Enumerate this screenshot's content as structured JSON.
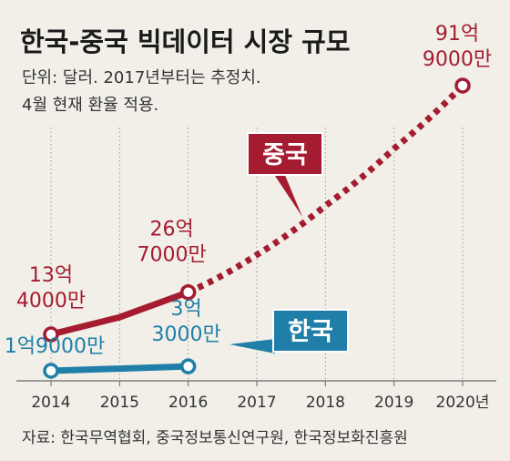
{
  "chart_data": {
    "type": "line",
    "title": "한국-중국 빅데이터 시장 규모",
    "subtitle": [
      "단위: 달러. 2017년부터는 추정치.",
      "4월 현재 환율 적용."
    ],
    "x": [
      "2014",
      "2015",
      "2016",
      "2017",
      "2018",
      "2019",
      "2020년"
    ],
    "series": [
      {
        "name": "중국",
        "color": "#a51c30",
        "values": [
          13.4,
          18.8,
          26.7,
          38.5,
          54.0,
          72.0,
          91.9
        ],
        "labeled_points": [
          {
            "x": "2014",
            "label": [
              "13억",
              "4000만"
            ]
          },
          {
            "x": "2016",
            "label": [
              "26억",
              "7000만"
            ]
          },
          {
            "x": "2020년",
            "label": [
              "91억",
              "9000만"
            ]
          }
        ],
        "solid_until": "2016",
        "dotted_after": "2016"
      },
      {
        "name": "한국",
        "color": "#1f7fa8",
        "values": [
          1.9,
          2.6,
          3.3,
          null,
          null,
          null,
          null
        ],
        "labeled_points": [
          {
            "x": "2014",
            "label": [
              "1억9000만"
            ]
          },
          {
            "x": "2016",
            "label": [
              "3억",
              "3000만"
            ]
          }
        ]
      }
    ],
    "source": "자료: 한국무역협회, 중국정보통신연구원, 한국정보화진흥원",
    "grid": "vertical-dotted",
    "legend": "callout-boxes"
  }
}
